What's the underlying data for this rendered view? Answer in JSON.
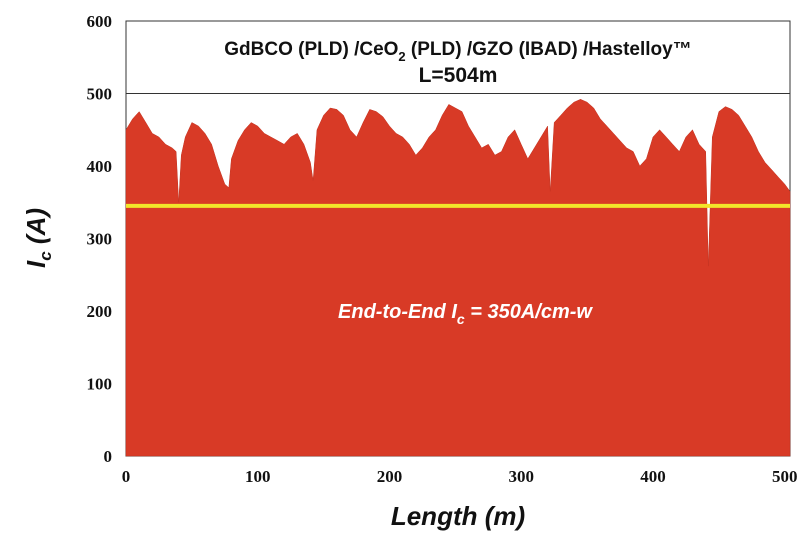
{
  "chart_data": {
    "type": "area",
    "title_line1": "GdBCO (PLD) /CeO",
    "title_sub": "2",
    "title_line1_rest": " (PLD) /GZO (IBAD) /Hastelloy™",
    "title_line2": "L=504m",
    "xlabel": "Length (m)",
    "ylabel_main": "I",
    "ylabel_sub": "c",
    "ylabel_rest": " (A)",
    "xlim": [
      0,
      504
    ],
    "ylim": [
      0,
      600
    ],
    "xticks": [
      "0",
      "100",
      "200",
      "300",
      "400",
      "500"
    ],
    "yticks": [
      "0",
      "100",
      "200",
      "300",
      "400",
      "500",
      "600"
    ],
    "grid": false,
    "reference_line": {
      "y": 345,
      "color": "#f2e52a"
    },
    "annotation": {
      "prefix": "End-to-End I",
      "sub": "c",
      "suffix": " = 350A/cm-w"
    },
    "fill_color": "#d83a26",
    "series": [
      {
        "x": [
          0,
          5,
          10,
          15,
          20,
          25,
          30,
          35,
          38,
          40,
          42,
          45,
          50,
          55,
          60,
          65,
          70,
          75,
          78,
          80,
          85,
          90,
          95,
          100,
          105,
          110,
          115,
          120,
          125,
          130,
          135,
          140,
          142,
          145,
          150,
          155,
          160,
          165,
          170,
          175,
          180,
          185,
          190,
          195,
          200,
          205,
          210,
          215,
          220,
          225,
          230,
          235,
          240,
          245,
          250,
          255,
          260,
          265,
          270,
          275,
          280,
          285,
          290,
          295,
          300,
          305,
          310,
          315,
          320,
          322,
          325,
          330,
          335,
          340,
          345,
          350,
          355,
          360,
          365,
          370,
          375,
          380,
          385,
          390,
          395,
          400,
          405,
          410,
          415,
          420,
          425,
          430,
          435,
          440,
          442,
          445,
          450,
          455,
          460,
          465,
          470,
          475,
          480,
          485,
          490,
          495,
          500,
          504
        ],
        "values": [
          450,
          465,
          475,
          460,
          445,
          440,
          430,
          425,
          420,
          350,
          415,
          440,
          460,
          455,
          445,
          430,
          400,
          375,
          370,
          410,
          435,
          450,
          460,
          455,
          445,
          440,
          435,
          430,
          440,
          445,
          430,
          405,
          380,
          450,
          470,
          480,
          478,
          470,
          450,
          440,
          460,
          478,
          475,
          468,
          455,
          445,
          440,
          430,
          415,
          425,
          440,
          450,
          470,
          485,
          480,
          475,
          455,
          440,
          425,
          430,
          415,
          420,
          440,
          450,
          430,
          410,
          425,
          440,
          455,
          365,
          460,
          470,
          480,
          488,
          492,
          488,
          480,
          465,
          455,
          445,
          435,
          425,
          420,
          400,
          410,
          440,
          450,
          440,
          430,
          420,
          440,
          450,
          430,
          420,
          262,
          440,
          475,
          482,
          478,
          470,
          455,
          440,
          420,
          405,
          395,
          385,
          375,
          365
        ]
      }
    ]
  }
}
